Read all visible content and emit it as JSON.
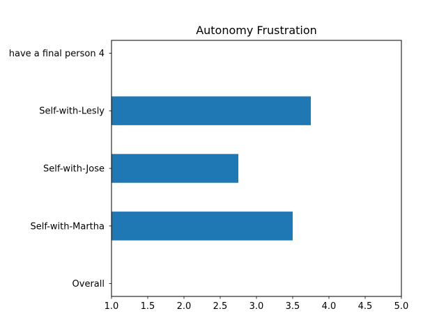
{
  "chart_data": {
    "type": "bar",
    "orientation": "horizontal",
    "title": "Autonomy Frustration",
    "xlabel": "",
    "ylabel": "",
    "xlim": [
      1.0,
      5.0
    ],
    "xticks": [
      "1.0",
      "1.5",
      "2.0",
      "2.5",
      "3.0",
      "3.5",
      "4.0",
      "4.5",
      "5.0"
    ],
    "categories": [
      "Overall",
      "Self-with-Martha",
      "Self-with-Jose",
      "Self-with-Lesly",
      "have a final person 4"
    ],
    "values": [
      null,
      3.5,
      2.75,
      3.75,
      null
    ],
    "bar_color": "#1f77b4",
    "grid": false,
    "legend": "none"
  }
}
